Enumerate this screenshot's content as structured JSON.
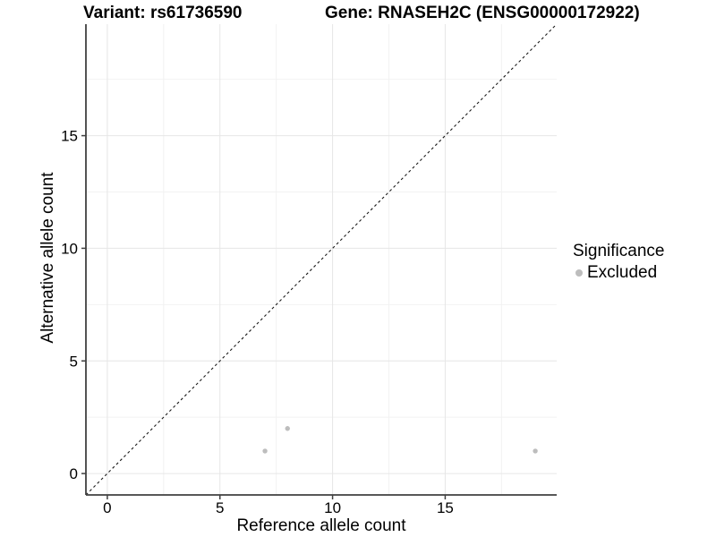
{
  "colors": {
    "background": "#ffffff",
    "grid_major": "#e6e6e6",
    "grid_minor": "#f2f2f2",
    "axis": "#404040",
    "text": "#000000",
    "point": "#bdbdbd"
  },
  "chart_data": {
    "type": "scatter",
    "title_left": "Variant: rs61736590",
    "title_right": "Gene: RNASEH2C (ENSG00000172922)",
    "xlabel": "Reference allele count",
    "ylabel": "Alternative allele count",
    "xlim": [
      -0.95,
      19.95
    ],
    "ylim": [
      -0.95,
      19.95
    ],
    "x_ticks": [
      0,
      5,
      10,
      15
    ],
    "x_tick_labels": [
      "0",
      "5",
      "10",
      "15"
    ],
    "y_ticks": [
      0,
      5,
      10,
      15
    ],
    "y_tick_labels": [
      "0",
      "5",
      "10",
      "15"
    ],
    "x_minor_ticks": [
      2.5,
      7.5,
      12.5,
      17.5
    ],
    "y_minor_ticks": [
      2.5,
      7.5,
      12.5,
      17.5
    ],
    "grid": true,
    "identity_line": {
      "style": "dashed",
      "equation": "y = x",
      "color": "#1a1a1a"
    },
    "series": [
      {
        "name": "Excluded",
        "color": "#bdbdbd",
        "points": [
          [
            7,
            1
          ],
          [
            8,
            2
          ],
          [
            19,
            1
          ]
        ]
      }
    ],
    "legend": {
      "title": "Significance",
      "position": "right",
      "items": [
        {
          "label": "Excluded",
          "color": "#bdbdbd",
          "marker": "circle-icon"
        }
      ]
    }
  }
}
